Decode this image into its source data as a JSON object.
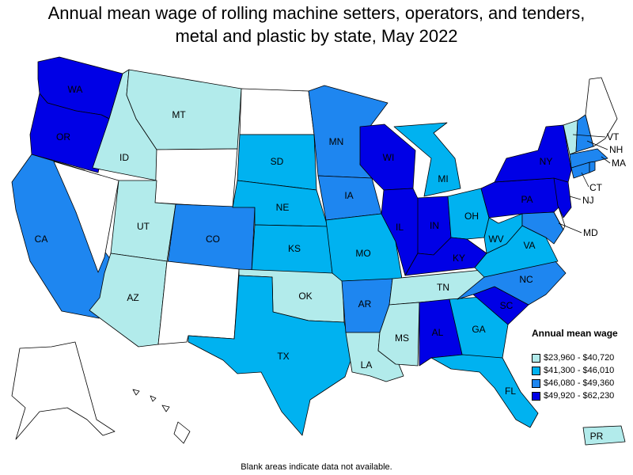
{
  "title_line1": "Annual mean wage of rolling machine setters, operators, and tenders,",
  "title_line2": "metal and plastic by state, May 2022",
  "legend": {
    "title": "Annual mean wage",
    "items": [
      {
        "label": "$23,960 - $40,720",
        "color": "#b2ebeb"
      },
      {
        "label": "$41,300 - $46,010",
        "color": "#00b2f0"
      },
      {
        "label": "$46,080 - $49,360",
        "color": "#1e86f0"
      },
      {
        "label": "$49,920 - $62,230",
        "color": "#0000e6"
      }
    ]
  },
  "no_data_color": "#ffffff",
  "footnote": "Blank areas indicate data not available.",
  "states": {
    "WA": {
      "label": "WA",
      "tier": 4
    },
    "OR": {
      "label": "OR",
      "tier": 4
    },
    "CA": {
      "label": "CA",
      "tier": 3
    },
    "NV": {
      "label": "",
      "tier": 0
    },
    "ID": {
      "label": "ID",
      "tier": 1
    },
    "MT": {
      "label": "MT",
      "tier": 1
    },
    "WY": {
      "label": "",
      "tier": 0
    },
    "UT": {
      "label": "UT",
      "tier": 1
    },
    "AZ": {
      "label": "AZ",
      "tier": 1
    },
    "CO": {
      "label": "CO",
      "tier": 3
    },
    "NM": {
      "label": "",
      "tier": 0
    },
    "ND": {
      "label": "",
      "tier": 0
    },
    "SD": {
      "label": "SD",
      "tier": 2
    },
    "NE": {
      "label": "NE",
      "tier": 2
    },
    "KS": {
      "label": "KS",
      "tier": 2
    },
    "OK": {
      "label": "OK",
      "tier": 1
    },
    "TX": {
      "label": "TX",
      "tier": 2
    },
    "MN": {
      "label": "MN",
      "tier": 3
    },
    "IA": {
      "label": "IA",
      "tier": 3
    },
    "MO": {
      "label": "MO",
      "tier": 2
    },
    "AR": {
      "label": "AR",
      "tier": 3
    },
    "LA": {
      "label": "LA",
      "tier": 1
    },
    "WI": {
      "label": "WI",
      "tier": 4
    },
    "IL": {
      "label": "IL",
      "tier": 4
    },
    "MI": {
      "label": "MI",
      "tier": 2
    },
    "IN": {
      "label": "IN",
      "tier": 4
    },
    "OH": {
      "label": "OH",
      "tier": 2
    },
    "KY": {
      "label": "KY",
      "tier": 4
    },
    "TN": {
      "label": "TN",
      "tier": 1
    },
    "MS": {
      "label": "MS",
      "tier": 1
    },
    "AL": {
      "label": "AL",
      "tier": 4
    },
    "GA": {
      "label": "GA",
      "tier": 2
    },
    "FL": {
      "label": "FL",
      "tier": 2
    },
    "SC": {
      "label": "SC",
      "tier": 4
    },
    "NC": {
      "label": "NC",
      "tier": 3
    },
    "VA": {
      "label": "VA",
      "tier": 2
    },
    "WV": {
      "label": "WV",
      "tier": 2
    },
    "PA": {
      "label": "PA",
      "tier": 4
    },
    "NY": {
      "label": "NY",
      "tier": 4
    },
    "VT": {
      "label": "VT",
      "tier": 1
    },
    "NH": {
      "label": "NH",
      "tier": 3
    },
    "ME": {
      "label": "",
      "tier": 0
    },
    "MA": {
      "label": "MA",
      "tier": 3
    },
    "CT": {
      "label": "CT",
      "tier": 3
    },
    "RI": {
      "label": "",
      "tier": 3
    },
    "NJ": {
      "label": "NJ",
      "tier": 4
    },
    "DE": {
      "label": "",
      "tier": 0
    },
    "MD": {
      "label": "MD",
      "tier": 3
    },
    "AK": {
      "label": "",
      "tier": 0
    },
    "HI": {
      "label": "",
      "tier": 0
    },
    "PR": {
      "label": "PR",
      "tier": 1
    }
  }
}
